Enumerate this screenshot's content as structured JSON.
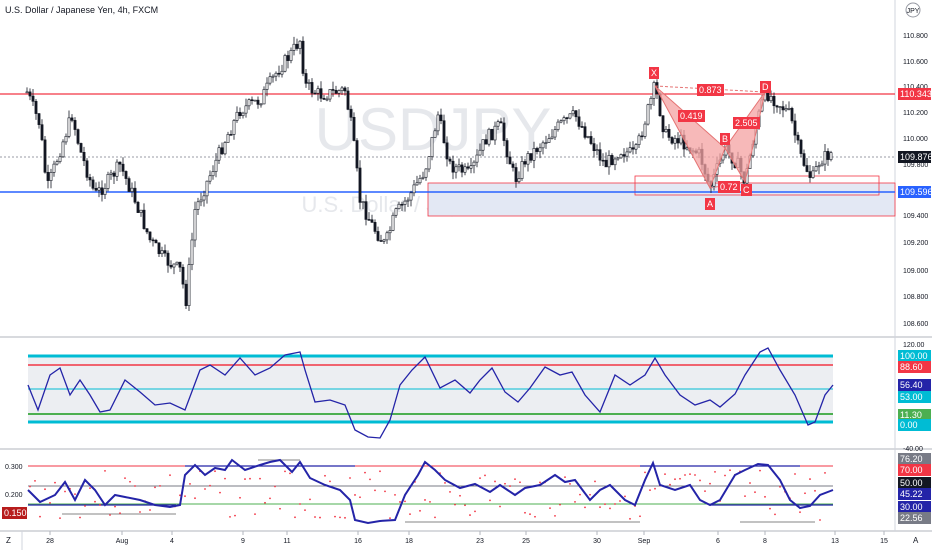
{
  "header": {
    "title": "U.S. Dollar / Japanese Yen, 4h, FXCM",
    "currency_badge": "JPY"
  },
  "watermark": {
    "symbol": "USDJPY",
    "name": "U.S. Dollar / Japanese Yen"
  },
  "price_axis": {
    "ticks": [
      "110.800",
      "110.600",
      "110.400",
      "110.200",
      "110.000",
      "109.800",
      "109.600",
      "109.400",
      "109.200",
      "109.000",
      "108.800",
      "108.600"
    ],
    "labels": {
      "resistance": "110.343",
      "last": "109.876",
      "support": "109.596"
    }
  },
  "pattern": {
    "points": [
      "X",
      "A",
      "B",
      "C",
      "D"
    ],
    "ratios": {
      "xb": "0.419",
      "xd": "0.873",
      "ac": "0.72",
      "bd": "2.505"
    }
  },
  "indicator1": {
    "ticks": [
      "120.00",
      "-40.00"
    ],
    "labels": [
      "100.00",
      "88.60",
      "56.40",
      "53.00",
      "11.30",
      "0.00"
    ]
  },
  "indicator2": {
    "ticks": [
      "0.300",
      "0.200",
      "0.100"
    ],
    "labels": [
      "76.20",
      "70.00",
      "50.00",
      "45.22",
      "30.00",
      "22.56",
      "0.150"
    ]
  },
  "time_axis": {
    "labels": [
      "28",
      "Aug",
      "4",
      "9",
      "11",
      "16",
      "18",
      "23",
      "25",
      "30",
      "Sep",
      "6",
      "8",
      "13",
      "15"
    ],
    "corner_left": "Z",
    "corner_right": "A"
  },
  "colors": {
    "red_line": "#f23645",
    "blue_line": "#2962ff",
    "cyan_line": "#00bcd4",
    "green_line": "#4caf50",
    "purple": "#2424a8",
    "pattern_fill": "#f4a1a1"
  }
}
